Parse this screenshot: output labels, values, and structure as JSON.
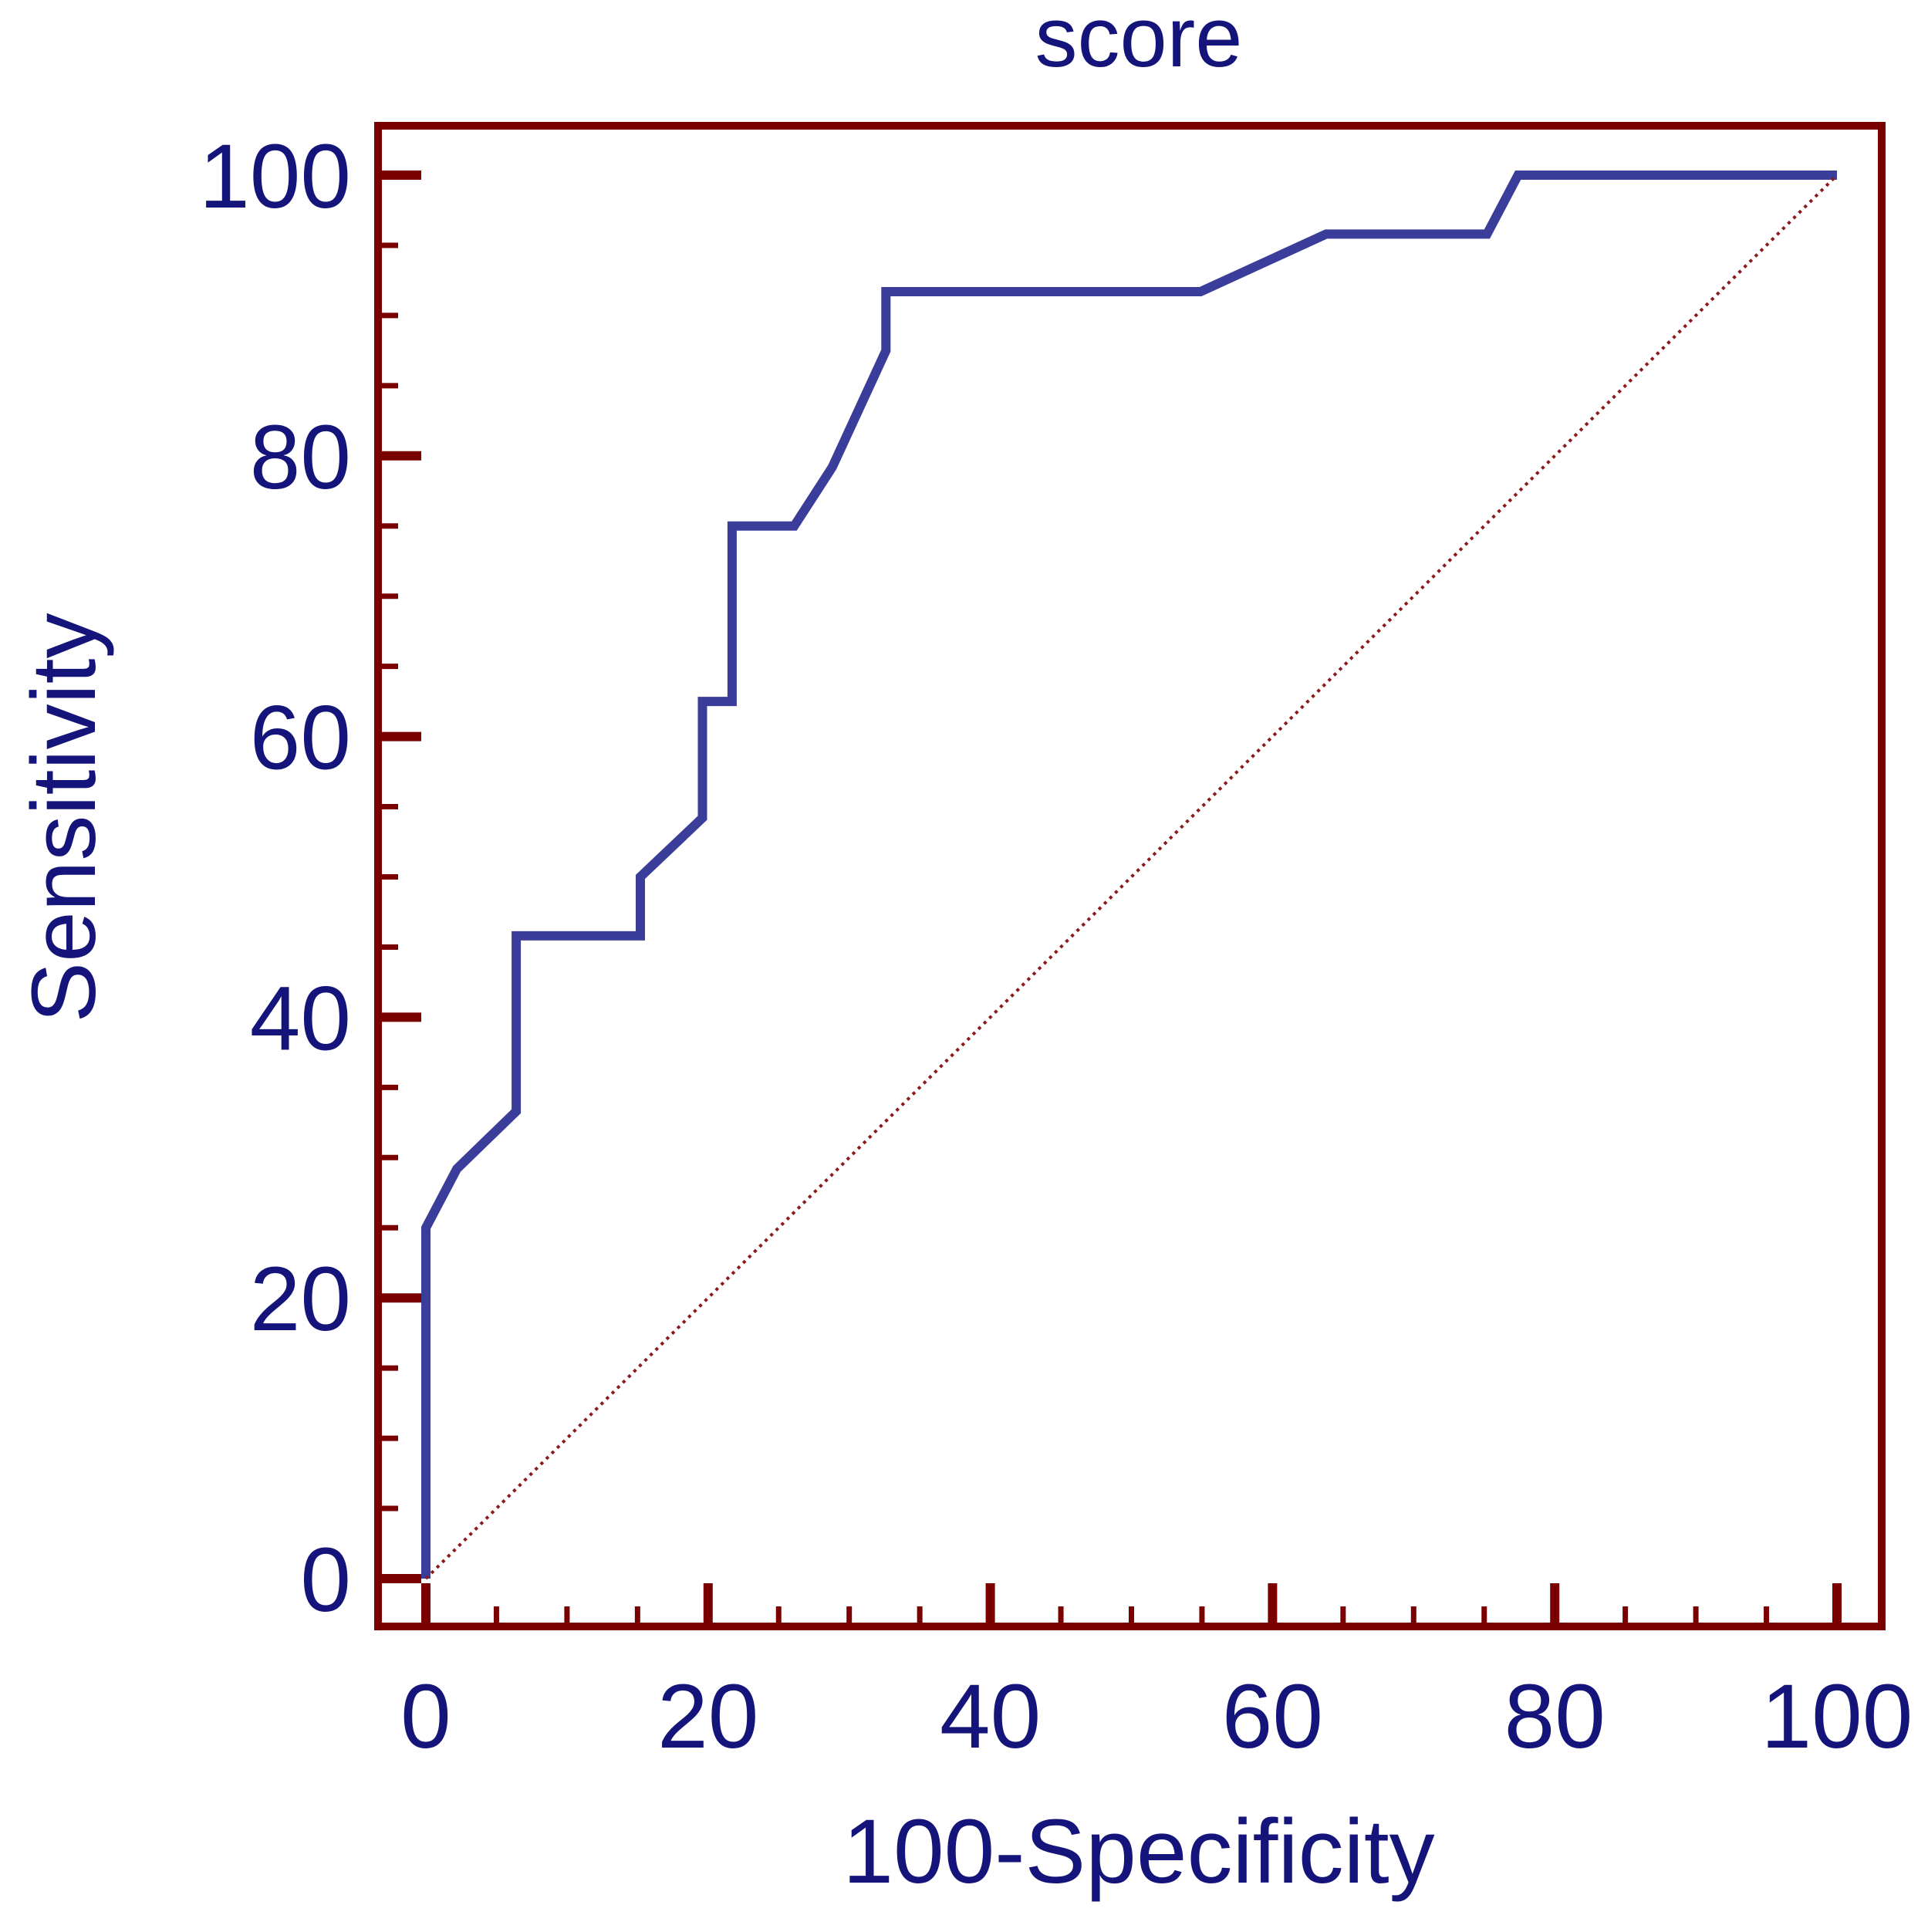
{
  "chart_data": {
    "type": "line",
    "title": "score",
    "xlabel": "100-Specificity",
    "ylabel": "Sensitivity",
    "xlim": [
      0,
      100
    ],
    "ylim": [
      0,
      100
    ],
    "x_ticks": [
      0,
      20,
      40,
      60,
      80,
      100
    ],
    "y_ticks": [
      0,
      20,
      40,
      60,
      80,
      100
    ],
    "grid": false,
    "legend": "none",
    "series": [
      {
        "style": "solid",
        "x": [
          0,
          0,
          2.2,
          6.4,
          6.4,
          15.2,
          15.2,
          19.6,
          19.6,
          21.7,
          21.7,
          26.1,
          28.8,
          32.6,
          32.6,
          54.9,
          63.8,
          75.2,
          77.4,
          100
        ],
        "y": [
          0,
          25,
          29.2,
          33.3,
          45.8,
          45.8,
          50,
          54.2,
          62.5,
          62.5,
          75,
          75,
          79.2,
          87.5,
          91.7,
          91.7,
          95.8,
          95.8,
          100,
          100
        ]
      },
      {
        "style": "dotted",
        "x": [
          0,
          100
        ],
        "y": [
          0,
          100
        ]
      }
    ],
    "colors": {
      "curve": "#3b3d9b",
      "reference": "#8b1a1a",
      "frame": "#7a0000",
      "text": "#14147a"
    }
  }
}
